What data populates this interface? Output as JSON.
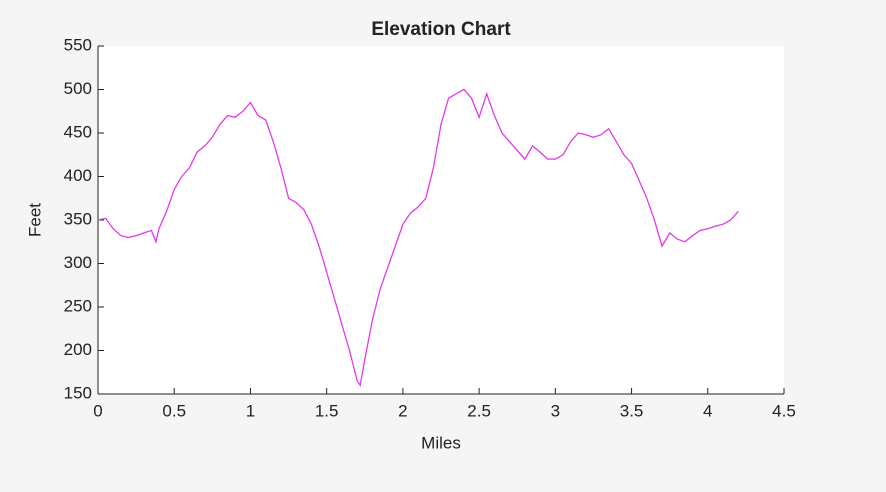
{
  "chart_data": {
    "type": "line",
    "title": "Elevation Chart",
    "x_label": "Miles",
    "y_label": "Feet",
    "x": [
      0,
      0.05,
      0.1,
      0.15,
      0.2,
      0.25,
      0.3,
      0.35,
      0.38,
      0.4,
      0.45,
      0.5,
      0.55,
      0.6,
      0.65,
      0.7,
      0.75,
      0.8,
      0.85,
      0.9,
      0.95,
      1.0,
      1.05,
      1.1,
      1.15,
      1.2,
      1.25,
      1.3,
      1.35,
      1.4,
      1.45,
      1.5,
      1.55,
      1.6,
      1.65,
      1.7,
      1.72,
      1.75,
      1.8,
      1.85,
      1.9,
      1.95,
      2.0,
      2.05,
      2.1,
      2.15,
      2.2,
      2.25,
      2.3,
      2.35,
      2.4,
      2.45,
      2.5,
      2.55,
      2.6,
      2.65,
      2.7,
      2.75,
      2.8,
      2.85,
      2.9,
      2.95,
      3.0,
      3.05,
      3.1,
      3.15,
      3.2,
      3.25,
      3.3,
      3.35,
      3.4,
      3.45,
      3.5,
      3.55,
      3.6,
      3.65,
      3.7,
      3.75,
      3.8,
      3.85,
      3.9,
      3.95,
      4.0,
      4.05,
      4.1,
      4.15,
      4.2
    ],
    "series": [
      {
        "name": "Elevation",
        "color": "#e23ae6",
        "values": [
          350,
          352,
          340,
          332,
          330,
          332,
          335,
          338,
          325,
          340,
          360,
          385,
          400,
          410,
          428,
          435,
          445,
          460,
          470,
          468,
          475,
          485,
          470,
          465,
          440,
          410,
          375,
          370,
          362,
          345,
          320,
          290,
          260,
          230,
          200,
          165,
          160,
          190,
          235,
          270,
          295,
          320,
          345,
          358,
          365,
          375,
          410,
          460,
          490,
          495,
          500,
          490,
          468,
          495,
          470,
          450,
          440,
          430,
          420,
          435,
          428,
          420,
          420,
          425,
          440,
          450,
          448,
          445,
          448,
          455,
          440,
          425,
          415,
          395,
          375,
          350,
          320,
          335,
          328,
          325,
          332,
          338,
          340,
          343,
          345,
          350,
          360
        ]
      }
    ],
    "xlim": [
      0,
      4.5
    ],
    "xticks": [
      0,
      0.5,
      1,
      1.5,
      2,
      2.5,
      3,
      3.5,
      4,
      4.5
    ],
    "ylim": [
      150,
      550
    ],
    "yticks": [
      150,
      200,
      250,
      300,
      350,
      400,
      450,
      500,
      550
    ]
  }
}
